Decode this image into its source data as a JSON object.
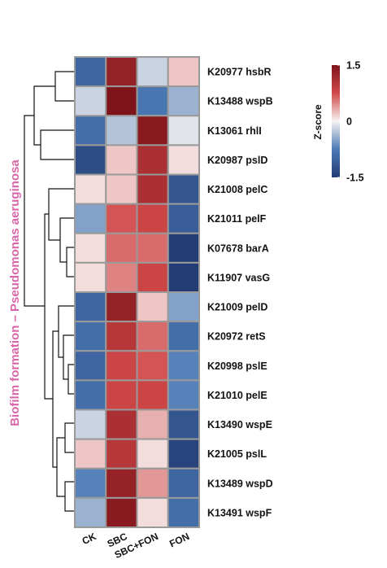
{
  "chart_data": {
    "type": "heatmap",
    "ylabel": "Biofilm formation – Pseudomonas aeruginosa",
    "colorbar_label": "Z-score",
    "columns": [
      "CK",
      "SBC",
      "SBC+FON",
      "FON"
    ],
    "rows": [
      "K20977 hsbR",
      "K13488 wspB",
      "K13061 rhlI",
      "K20987 pslD",
      "K21008 pelC",
      "K21011 pelF",
      "K07678 barA",
      "K11907 vasG",
      "K21009 pelD",
      "K20972 retS",
      "K20998 pslE",
      "K21010 pelE",
      "K13490 wspE",
      "K21005 pslL",
      "K13489 wspD",
      "K13491 wspF"
    ],
    "values": [
      [
        -1.0,
        1.3,
        -0.2,
        0.2
      ],
      [
        -0.2,
        1.5,
        -0.8,
        -0.4
      ],
      [
        -0.9,
        -0.3,
        1.4,
        -0.1
      ],
      [
        -1.3,
        0.2,
        1.1,
        0.1
      ],
      [
        0.1,
        0.2,
        1.1,
        -1.2
      ],
      [
        -0.5,
        0.7,
        0.8,
        -1.1
      ],
      [
        0.1,
        0.6,
        0.6,
        -1.5
      ],
      [
        0.1,
        0.5,
        0.8,
        -1.5
      ],
      [
        -1.0,
        1.3,
        0.2,
        -0.5
      ],
      [
        -0.9,
        1.0,
        0.6,
        -0.9
      ],
      [
        -1.0,
        0.8,
        0.7,
        -0.7
      ],
      [
        -0.9,
        0.8,
        0.8,
        -0.7
      ],
      [
        -0.2,
        1.1,
        0.3,
        -1.2
      ],
      [
        0.2,
        1.0,
        0.1,
        -1.4
      ],
      [
        -0.7,
        1.3,
        0.4,
        -1.0
      ],
      [
        -0.4,
        1.4,
        0.1,
        -0.9
      ]
    ],
    "zlim": [
      -1.5,
      1.5
    ],
    "zticks": [
      -1.5,
      0,
      1.5
    ],
    "colormap": [
      "#243c74",
      "#4b7ab5",
      "#f7f3f2",
      "#d1494a",
      "#7e141a"
    ]
  }
}
